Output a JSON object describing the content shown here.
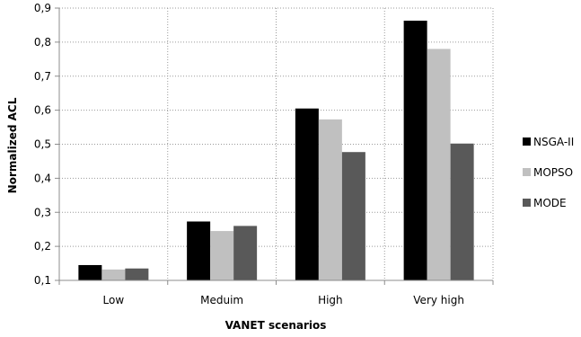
{
  "chart_data": {
    "type": "bar",
    "title": "",
    "xlabel": "VANET scenarios",
    "ylabel": "Normalized ACL",
    "categories": [
      "Low",
      "Meduim",
      "High",
      "Very high"
    ],
    "series": [
      {
        "name": "NSGA-II",
        "color": "#000000",
        "values": [
          0.145,
          0.273,
          0.605,
          0.863
        ]
      },
      {
        "name": "MOPSO",
        "color": "#c0c0c0",
        "values": [
          0.132,
          0.245,
          0.573,
          0.78
        ]
      },
      {
        "name": "MODE",
        "color": "#595959",
        "values": [
          0.135,
          0.26,
          0.477,
          0.502
        ]
      }
    ],
    "ylim": [
      0.1,
      0.9
    ],
    "yticks": [
      "0,1",
      "0,2",
      "0,3",
      "0,4",
      "0,5",
      "0,6",
      "0,7",
      "0,8",
      "0,9"
    ],
    "grid": true,
    "legend": "right"
  }
}
